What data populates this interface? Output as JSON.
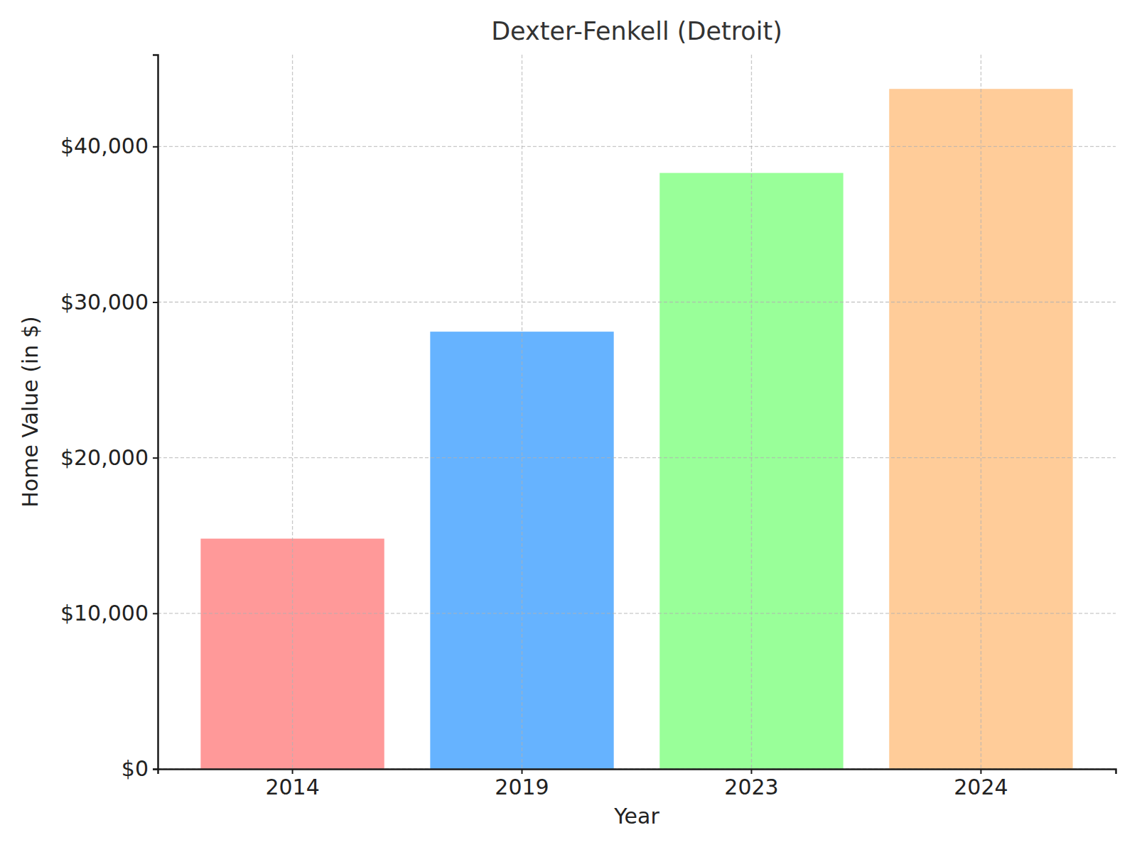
{
  "chart_data": {
    "type": "bar",
    "title": "Dexter-Fenkell (Detroit)",
    "x_label": "Year",
    "y_label": "Home Value (in $)",
    "categories": [
      "2014",
      "2019",
      "2023",
      "2024"
    ],
    "values": [
      14800,
      28100,
      38300,
      43700
    ],
    "colors": [
      "#ff9999",
      "#66b3ff",
      "#99ff99",
      "#ffcc99"
    ],
    "ylim": [
      0,
      45900
    ],
    "yticks": [
      {
        "value": 0,
        "label": "$0"
      },
      {
        "value": 10000,
        "label": "$10,000"
      },
      {
        "value": 20000,
        "label": "$20,000"
      },
      {
        "value": 30000,
        "label": "$30,000"
      },
      {
        "value": 40000,
        "label": "$40,000"
      }
    ],
    "grid": true
  }
}
